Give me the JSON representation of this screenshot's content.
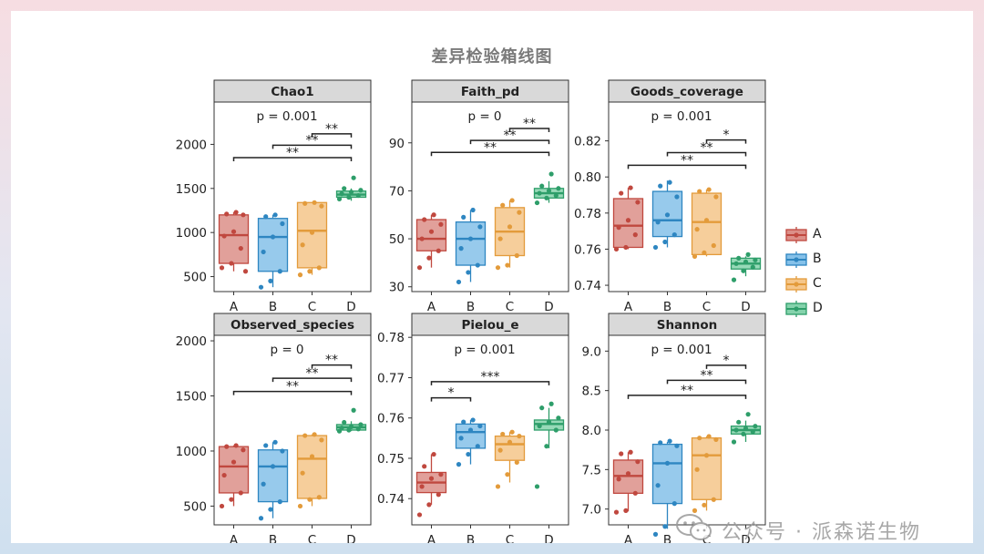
{
  "page": {
    "title": "差异检验箱线图"
  },
  "legend": [
    {
      "key": "A",
      "color": "#c0483f",
      "fill": "#dc8f88"
    },
    {
      "key": "B",
      "color": "#2e86c1",
      "fill": "#85c1e9"
    },
    {
      "key": "C",
      "color": "#e39b3b",
      "fill": "#f5c68a"
    },
    {
      "key": "D",
      "color": "#2e9e6a",
      "fill": "#85d3ac"
    }
  ],
  "watermark": {
    "text": "公众号 · 派森诺生物",
    "icon": "wechat-icon"
  },
  "chart_data": [
    {
      "type": "boxplot",
      "title": "Chao1",
      "categories": [
        "A",
        "B",
        "C",
        "D"
      ],
      "ylim": [
        330,
        2480
      ],
      "yticks": [
        500,
        1000,
        1500,
        2000
      ],
      "tick_labels": [
        "500",
        "1000",
        "1500",
        "2000"
      ],
      "boxes": [
        {
          "group": "A",
          "q1": 650,
          "median": 970,
          "q3": 1200,
          "lower": 560,
          "upper": 1230,
          "points": [
            600,
            650,
            820,
            960,
            1010,
            1200,
            1210,
            1230,
            560
          ]
        },
        {
          "group": "B",
          "q1": 560,
          "median": 950,
          "q3": 1160,
          "lower": 380,
          "upper": 1200,
          "points": [
            380,
            450,
            560,
            780,
            950,
            1100,
            1180,
            1200
          ]
        },
        {
          "group": "C",
          "q1": 600,
          "median": 1020,
          "q3": 1340,
          "lower": 520,
          "upper": 1340,
          "points": [
            520,
            560,
            600,
            860,
            1000,
            1300,
            1330,
            1340
          ]
        },
        {
          "group": "D",
          "q1": 1400,
          "median": 1430,
          "q3": 1470,
          "lower": 1360,
          "upper": 1500,
          "points": [
            1380,
            1400,
            1420,
            1440,
            1460,
            1480,
            1500,
            1620
          ]
        }
      ],
      "p_label": "p = 0.001",
      "brackets": [
        {
          "from": "C",
          "to": "D",
          "label": "**",
          "y": 2120
        },
        {
          "from": "B",
          "to": "D",
          "label": "**",
          "y": 1990
        },
        {
          "from": "A",
          "to": "D",
          "label": "**",
          "y": 1850
        }
      ]
    },
    {
      "type": "boxplot",
      "title": "Faith_pd",
      "categories": [
        "A",
        "B",
        "C",
        "D"
      ],
      "ylim": [
        28,
        107
      ],
      "yticks": [
        30,
        50,
        70,
        90
      ],
      "tick_labels": [
        "30",
        "50",
        "70",
        "90"
      ],
      "boxes": [
        {
          "group": "A",
          "q1": 45,
          "median": 50,
          "q3": 58,
          "lower": 38,
          "upper": 60,
          "points": [
            38,
            42,
            45,
            50,
            53,
            56,
            58,
            60
          ]
        },
        {
          "group": "B",
          "q1": 39,
          "median": 50,
          "q3": 57,
          "lower": 32,
          "upper": 62,
          "points": [
            32,
            36,
            39,
            46,
            50,
            55,
            59,
            62
          ]
        },
        {
          "group": "C",
          "q1": 43,
          "median": 53,
          "q3": 63,
          "lower": 38,
          "upper": 66,
          "points": [
            38,
            39,
            43,
            50,
            55,
            61,
            64,
            66
          ]
        },
        {
          "group": "D",
          "q1": 67,
          "median": 69,
          "q3": 71,
          "lower": 65,
          "upper": 74,
          "points": [
            65,
            67,
            68,
            69,
            70,
            71,
            72,
            77
          ]
        }
      ],
      "p_label": "p = 0",
      "brackets": [
        {
          "from": "C",
          "to": "D",
          "label": "**",
          "y": 96
        },
        {
          "from": "B",
          "to": "D",
          "label": "**",
          "y": 91
        },
        {
          "from": "A",
          "to": "D",
          "label": "**",
          "y": 86
        }
      ]
    },
    {
      "type": "boxplot",
      "title": "Goods_coverage",
      "categories": [
        "A",
        "B",
        "C",
        "D"
      ],
      "ylim": [
        0.7365,
        0.8415
      ],
      "yticks": [
        0.74,
        0.76,
        0.78,
        0.8,
        0.82
      ],
      "tick_labels": [
        "0.74",
        "0.76",
        "0.78",
        "0.80",
        "0.82"
      ],
      "boxes": [
        {
          "group": "A",
          "q1": 0.761,
          "median": 0.773,
          "q3": 0.788,
          "lower": 0.76,
          "upper": 0.794,
          "points": [
            0.76,
            0.761,
            0.768,
            0.772,
            0.776,
            0.786,
            0.791,
            0.794
          ]
        },
        {
          "group": "B",
          "q1": 0.767,
          "median": 0.776,
          "q3": 0.792,
          "lower": 0.761,
          "upper": 0.798,
          "points": [
            0.761,
            0.764,
            0.768,
            0.775,
            0.779,
            0.789,
            0.795,
            0.797
          ]
        },
        {
          "group": "C",
          "q1": 0.757,
          "median": 0.775,
          "q3": 0.791,
          "lower": 0.756,
          "upper": 0.793,
          "points": [
            0.756,
            0.758,
            0.762,
            0.771,
            0.776,
            0.789,
            0.792,
            0.793
          ]
        },
        {
          "group": "D",
          "q1": 0.749,
          "median": 0.752,
          "q3": 0.755,
          "lower": 0.745,
          "upper": 0.756,
          "points": [
            0.743,
            0.748,
            0.75,
            0.752,
            0.753,
            0.754,
            0.755,
            0.757
          ]
        }
      ],
      "p_label": "p = 0.001",
      "brackets": [
        {
          "from": "C",
          "to": "D",
          "label": "*",
          "y": 0.8205
        },
        {
          "from": "B",
          "to": "D",
          "label": "**",
          "y": 0.8135
        },
        {
          "from": "A",
          "to": "D",
          "label": "**",
          "y": 0.8065
        }
      ]
    },
    {
      "type": "boxplot",
      "title": "Observed_species",
      "categories": [
        "A",
        "B",
        "C",
        "D"
      ],
      "ylim": [
        330,
        2050
      ],
      "yticks": [
        500,
        1000,
        1500,
        2000
      ],
      "tick_labels": [
        "500",
        "1000",
        "1500",
        "2000"
      ],
      "boxes": [
        {
          "group": "A",
          "q1": 620,
          "median": 860,
          "q3": 1040,
          "lower": 500,
          "upper": 1050,
          "points": [
            500,
            560,
            620,
            780,
            900,
            1010,
            1040,
            1050
          ]
        },
        {
          "group": "B",
          "q1": 540,
          "median": 860,
          "q3": 1010,
          "lower": 390,
          "upper": 1080,
          "points": [
            390,
            470,
            540,
            700,
            860,
            1000,
            1050,
            1080
          ]
        },
        {
          "group": "C",
          "q1": 570,
          "median": 930,
          "q3": 1140,
          "lower": 500,
          "upper": 1150,
          "points": [
            500,
            560,
            580,
            800,
            950,
            1100,
            1140,
            1150
          ]
        },
        {
          "group": "D",
          "q1": 1190,
          "median": 1215,
          "q3": 1240,
          "lower": 1180,
          "upper": 1270,
          "points": [
            1180,
            1190,
            1200,
            1210,
            1220,
            1240,
            1260,
            1370
          ]
        }
      ],
      "p_label": "p = 0",
      "brackets": [
        {
          "from": "C",
          "to": "D",
          "label": "**",
          "y": 1780
        },
        {
          "from": "B",
          "to": "D",
          "label": "**",
          "y": 1660
        },
        {
          "from": "A",
          "to": "D",
          "label": "**",
          "y": 1540
        }
      ]
    },
    {
      "type": "boxplot",
      "title": "Pielou_e",
      "categories": [
        "A",
        "B",
        "C",
        "D"
      ],
      "ylim": [
        0.7335,
        0.7805
      ],
      "yticks": [
        0.74,
        0.75,
        0.76,
        0.77,
        0.78
      ],
      "tick_labels": [
        "0.74",
        "0.75",
        "0.76",
        "0.77",
        "0.78"
      ],
      "boxes": [
        {
          "group": "A",
          "q1": 0.7415,
          "median": 0.744,
          "q3": 0.7465,
          "lower": 0.7385,
          "upper": 0.751,
          "points": [
            0.736,
            0.7385,
            0.741,
            0.743,
            0.745,
            0.746,
            0.748,
            0.751
          ]
        },
        {
          "group": "B",
          "q1": 0.7525,
          "median": 0.7565,
          "q3": 0.7585,
          "lower": 0.7485,
          "upper": 0.7595,
          "points": [
            0.7485,
            0.751,
            0.753,
            0.755,
            0.757,
            0.758,
            0.759,
            0.7595
          ]
        },
        {
          "group": "C",
          "q1": 0.7495,
          "median": 0.7535,
          "q3": 0.7555,
          "lower": 0.744,
          "upper": 0.7565,
          "points": [
            0.743,
            0.746,
            0.749,
            0.752,
            0.754,
            0.7555,
            0.756,
            0.7565
          ]
        },
        {
          "group": "D",
          "q1": 0.757,
          "median": 0.7585,
          "q3": 0.7595,
          "lower": 0.7525,
          "upper": 0.7625,
          "points": [
            0.743,
            0.753,
            0.757,
            0.758,
            0.759,
            0.76,
            0.7625,
            0.7635
          ]
        }
      ],
      "p_label": "p = 0.001",
      "brackets": [
        {
          "from": "A",
          "to": "B",
          "label": "*",
          "y": 0.765
        },
        {
          "from": "A",
          "to": "D",
          "label": "***",
          "y": 0.769
        }
      ]
    },
    {
      "type": "boxplot",
      "title": "Shannon",
      "categories": [
        "A",
        "B",
        "C",
        "D"
      ],
      "ylim": [
        6.8,
        9.2
      ],
      "yticks": [
        7.0,
        7.5,
        8.0,
        8.5,
        9.0
      ],
      "tick_labels": [
        "7.0",
        "7.5",
        "8.0",
        "8.5",
        "9.0"
      ],
      "boxes": [
        {
          "group": "A",
          "q1": 7.2,
          "median": 7.42,
          "q3": 7.62,
          "lower": 6.97,
          "upper": 7.72,
          "points": [
            6.96,
            6.98,
            7.2,
            7.38,
            7.45,
            7.6,
            7.7,
            7.72
          ]
        },
        {
          "group": "B",
          "q1": 7.07,
          "median": 7.58,
          "q3": 7.82,
          "lower": 6.75,
          "upper": 7.85,
          "points": [
            6.68,
            6.78,
            7.07,
            7.3,
            7.58,
            7.8,
            7.84,
            7.86
          ]
        },
        {
          "group": "C",
          "q1": 7.12,
          "median": 7.68,
          "q3": 7.9,
          "lower": 6.98,
          "upper": 7.92,
          "points": [
            6.98,
            7.05,
            7.12,
            7.5,
            7.68,
            7.88,
            7.9,
            7.92
          ]
        },
        {
          "group": "D",
          "q1": 7.95,
          "median": 8.0,
          "q3": 8.05,
          "lower": 7.85,
          "upper": 8.12,
          "points": [
            7.85,
            7.95,
            7.98,
            8.0,
            8.02,
            8.05,
            8.1,
            8.2
          ]
        }
      ],
      "p_label": "p = 0.001",
      "brackets": [
        {
          "from": "C",
          "to": "D",
          "label": "*",
          "y": 8.82
        },
        {
          "from": "B",
          "to": "D",
          "label": "**",
          "y": 8.63
        },
        {
          "from": "A",
          "to": "D",
          "label": "**",
          "y": 8.44
        }
      ]
    }
  ]
}
